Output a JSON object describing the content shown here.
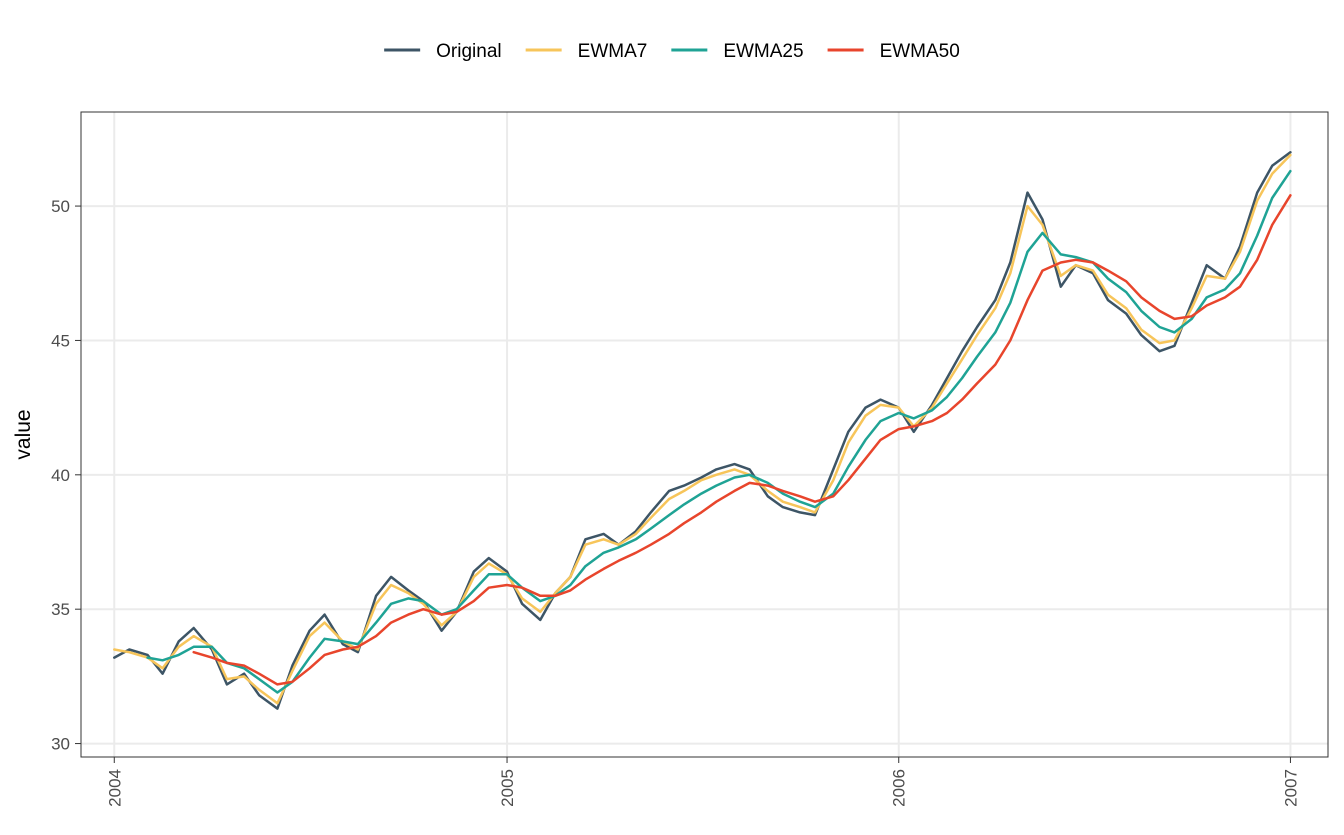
{
  "chart_data": {
    "type": "line",
    "title": "",
    "xlabel": "",
    "ylabel": "value",
    "legend_position": "top",
    "grid": true,
    "xlim": [
      "2003-12-01",
      "2007-02-05"
    ],
    "ylim": [
      29.5,
      53.5
    ],
    "x_ticks": [
      {
        "date": "2004-01-01",
        "label": "2004"
      },
      {
        "date": "2005-01-01",
        "label": "2005"
      },
      {
        "date": "2006-01-01",
        "label": "2006"
      },
      {
        "date": "2007-01-01",
        "label": "2007"
      }
    ],
    "y_ticks": [
      30,
      35,
      40,
      45,
      50
    ],
    "x": [
      "2004-01-01",
      "2004-01-15",
      "2004-02-01",
      "2004-02-15",
      "2004-03-01",
      "2004-03-15",
      "2004-04-01",
      "2004-04-15",
      "2004-05-01",
      "2004-05-15",
      "2004-06-01",
      "2004-06-15",
      "2004-07-01",
      "2004-07-15",
      "2004-08-01",
      "2004-08-15",
      "2004-09-01",
      "2004-09-15",
      "2004-10-01",
      "2004-10-15",
      "2004-11-01",
      "2004-11-15",
      "2004-12-01",
      "2004-12-15",
      "2005-01-01",
      "2005-01-15",
      "2005-02-01",
      "2005-02-15",
      "2005-03-01",
      "2005-03-15",
      "2005-04-01",
      "2005-04-15",
      "2005-05-01",
      "2005-05-15",
      "2005-06-01",
      "2005-06-15",
      "2005-07-01",
      "2005-07-15",
      "2005-08-01",
      "2005-08-15",
      "2005-09-01",
      "2005-09-15",
      "2005-10-01",
      "2005-10-15",
      "2005-11-01",
      "2005-11-15",
      "2005-12-01",
      "2005-12-15",
      "2006-01-01",
      "2006-01-15",
      "2006-02-01",
      "2006-02-15",
      "2006-03-01",
      "2006-03-15",
      "2006-04-01",
      "2006-04-15",
      "2006-05-01",
      "2006-05-15",
      "2006-06-01",
      "2006-06-15",
      "2006-07-01",
      "2006-07-15",
      "2006-08-01",
      "2006-08-15",
      "2006-09-01",
      "2006-09-15",
      "2006-10-01",
      "2006-10-15",
      "2006-11-01",
      "2006-11-15",
      "2006-12-01",
      "2006-12-15",
      "2007-01-01"
    ],
    "series": [
      {
        "name": "Original",
        "color": "#3d5566",
        "values": [
          33.2,
          33.5,
          33.3,
          32.6,
          33.8,
          34.3,
          33.5,
          32.2,
          32.6,
          31.8,
          31.3,
          32.9,
          34.2,
          34.8,
          33.7,
          33.4,
          35.5,
          36.2,
          35.7,
          35.3,
          34.2,
          34.9,
          36.4,
          36.9,
          36.4,
          35.2,
          34.6,
          35.6,
          36.2,
          37.6,
          37.8,
          37.4,
          37.9,
          38.6,
          39.4,
          39.6,
          39.9,
          40.2,
          40.4,
          40.2,
          39.2,
          38.8,
          38.6,
          38.5,
          40.2,
          41.6,
          42.5,
          42.8,
          42.5,
          41.6,
          42.6,
          43.6,
          44.6,
          45.5,
          46.5,
          47.9,
          50.5,
          49.5,
          47.0,
          47.8,
          47.5,
          46.5,
          46.0,
          45.2,
          44.6,
          44.8,
          46.4,
          47.8,
          47.3,
          48.5,
          50.5,
          51.5,
          52.0
        ]
      },
      {
        "name": "EWMA7",
        "color": "#f7c55a",
        "values": [
          33.5,
          33.4,
          33.2,
          32.8,
          33.6,
          34.0,
          33.6,
          32.4,
          32.5,
          32.0,
          31.5,
          32.7,
          34.0,
          34.5,
          33.8,
          33.5,
          35.2,
          35.9,
          35.6,
          35.2,
          34.4,
          34.9,
          36.2,
          36.7,
          36.3,
          35.4,
          34.9,
          35.6,
          36.2,
          37.4,
          37.6,
          37.4,
          37.8,
          38.4,
          39.1,
          39.4,
          39.8,
          40.0,
          40.2,
          40.0,
          39.4,
          39.0,
          38.8,
          38.6,
          39.8,
          41.2,
          42.2,
          42.6,
          42.5,
          41.8,
          42.5,
          43.4,
          44.3,
          45.2,
          46.2,
          47.5,
          50.0,
          49.3,
          47.4,
          47.8,
          47.6,
          46.7,
          46.2,
          45.4,
          44.9,
          45.0,
          46.2,
          47.4,
          47.3,
          48.3,
          50.2,
          51.2,
          51.9
        ]
      },
      {
        "name": "EWMA25",
        "color": "#1fa395",
        "values": [
          null,
          null,
          33.2,
          33.1,
          33.3,
          33.6,
          33.6,
          33.0,
          32.8,
          32.4,
          31.9,
          32.3,
          33.2,
          33.9,
          33.8,
          33.7,
          34.5,
          35.2,
          35.4,
          35.3,
          34.8,
          35.0,
          35.7,
          36.3,
          36.3,
          35.8,
          35.3,
          35.5,
          35.9,
          36.6,
          37.1,
          37.3,
          37.6,
          38.0,
          38.5,
          38.9,
          39.3,
          39.6,
          39.9,
          40.0,
          39.7,
          39.3,
          39.0,
          38.8,
          39.3,
          40.3,
          41.3,
          42.0,
          42.3,
          42.1,
          42.4,
          42.9,
          43.6,
          44.4,
          45.3,
          46.4,
          48.3,
          49.0,
          48.2,
          48.1,
          47.9,
          47.3,
          46.8,
          46.1,
          45.5,
          45.3,
          45.8,
          46.6,
          46.9,
          47.5,
          48.9,
          50.3,
          51.3
        ]
      },
      {
        "name": "EWMA50",
        "color": "#e8452c",
        "values": [
          null,
          null,
          null,
          null,
          null,
          33.4,
          33.2,
          33.0,
          32.9,
          32.6,
          32.2,
          32.3,
          32.8,
          33.3,
          33.5,
          33.6,
          34.0,
          34.5,
          34.8,
          35.0,
          34.8,
          34.9,
          35.3,
          35.8,
          35.9,
          35.8,
          35.5,
          35.5,
          35.7,
          36.1,
          36.5,
          36.8,
          37.1,
          37.4,
          37.8,
          38.2,
          38.6,
          39.0,
          39.4,
          39.7,
          39.6,
          39.4,
          39.2,
          39.0,
          39.2,
          39.8,
          40.6,
          41.3,
          41.7,
          41.8,
          42.0,
          42.3,
          42.8,
          43.4,
          44.1,
          45.0,
          46.5,
          47.6,
          47.9,
          48.0,
          47.9,
          47.6,
          47.2,
          46.6,
          46.1,
          45.8,
          45.9,
          46.3,
          46.6,
          47.0,
          48.0,
          49.3,
          50.4
        ]
      }
    ]
  }
}
